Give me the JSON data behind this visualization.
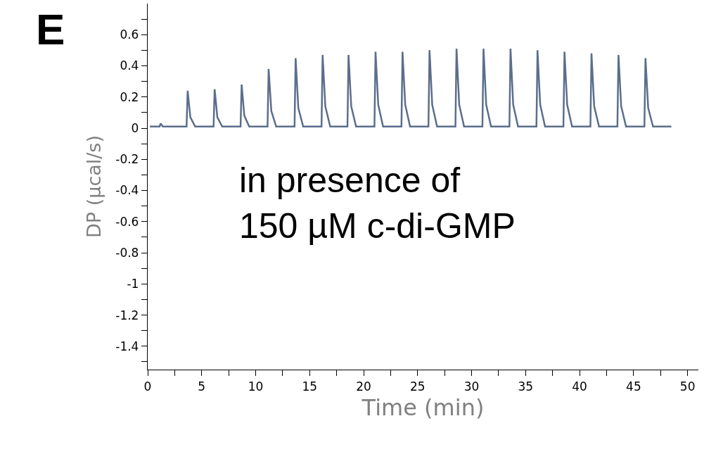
{
  "chart_data": {
    "type": "line",
    "xlabel": "Time (min)",
    "ylabel": "DP (µcal/s)",
    "annotations": [
      "E",
      "in presence of\n150 µM c-di-GMP"
    ],
    "x": [
      0.2,
      1.1,
      1.2,
      1.4,
      3.6,
      3.7,
      3.95,
      4.4,
      6.1,
      6.2,
      6.45,
      6.9,
      8.6,
      8.7,
      8.95,
      9.4,
      11.1,
      11.2,
      11.45,
      11.9,
      13.6,
      13.7,
      13.95,
      14.4,
      16.1,
      16.2,
      16.45,
      16.9,
      18.5,
      18.6,
      18.85,
      19.3,
      21.0,
      21.1,
      21.35,
      21.8,
      23.5,
      23.6,
      23.85,
      24.3,
      26.0,
      26.1,
      26.35,
      26.8,
      28.5,
      28.6,
      28.85,
      29.3,
      31.0,
      31.1,
      31.35,
      31.8,
      33.5,
      33.6,
      33.85,
      34.3,
      36.0,
      36.1,
      36.35,
      36.8,
      38.5,
      38.6,
      38.85,
      39.3,
      41.0,
      41.1,
      41.35,
      41.8,
      43.5,
      43.6,
      43.85,
      44.3,
      46.0,
      46.1,
      46.35,
      46.8,
      48.5
    ],
    "series": [
      {
        "color": "#5b6e8c",
        "values": [
          0.01,
          0.01,
          0.03,
          0.01,
          0.01,
          0.24,
          0.07,
          0.01,
          0.01,
          0.25,
          0.07,
          0.01,
          0.01,
          0.28,
          0.08,
          0.01,
          0.01,
          0.38,
          0.11,
          0.01,
          0.01,
          0.45,
          0.13,
          0.01,
          0.01,
          0.47,
          0.14,
          0.01,
          0.01,
          0.47,
          0.14,
          0.01,
          0.01,
          0.49,
          0.15,
          0.01,
          0.01,
          0.49,
          0.15,
          0.01,
          0.01,
          0.5,
          0.15,
          0.01,
          0.01,
          0.51,
          0.15,
          0.01,
          0.01,
          0.51,
          0.15,
          0.01,
          0.01,
          0.51,
          0.15,
          0.01,
          0.01,
          0.5,
          0.15,
          0.01,
          0.01,
          0.49,
          0.15,
          0.01,
          0.01,
          0.48,
          0.14,
          0.01,
          0.01,
          0.47,
          0.14,
          0.01,
          0.01,
          0.45,
          0.13,
          0.01,
          0.01
        ]
      }
    ],
    "xlim": [
      0,
      51
    ],
    "ylim": [
      -1.55,
      0.8
    ],
    "xticks": [
      0,
      {
        "value": 2.5,
        "label": null
      },
      5,
      {
        "value": 7.5,
        "label": null
      },
      10,
      {
        "value": 12.5,
        "label": null
      },
      15,
      {
        "value": 17.5,
        "label": null
      },
      20,
      {
        "value": 22.5,
        "label": null
      },
      25,
      {
        "value": 27.5,
        "label": null
      },
      30,
      {
        "value": 32.5,
        "label": null
      },
      35,
      {
        "value": 37.5,
        "label": null
      },
      40,
      {
        "value": 42.5,
        "label": null
      },
      45,
      {
        "value": 47.5,
        "label": null
      },
      50
    ],
    "yticks": [
      {
        "value": -1.5,
        "label": null
      },
      -1.4,
      {
        "value": -1.3,
        "label": null
      },
      -1.2,
      {
        "value": -1.1,
        "label": null
      },
      -1,
      {
        "value": -0.9,
        "label": null
      },
      -0.8,
      {
        "value": -0.7,
        "label": null
      },
      -0.6,
      {
        "value": -0.5,
        "label": null
      },
      -0.4,
      {
        "value": -0.3,
        "label": null
      },
      -0.2,
      {
        "value": -0.1,
        "label": null
      },
      0,
      {
        "value": 0.1,
        "label": null
      },
      0.2,
      {
        "value": 0.3,
        "label": null
      },
      0.4,
      {
        "value": 0.5,
        "label": null
      },
      0.6,
      {
        "value": 0.7,
        "label": null
      }
    ],
    "line_style": "solid",
    "marker": "none"
  }
}
